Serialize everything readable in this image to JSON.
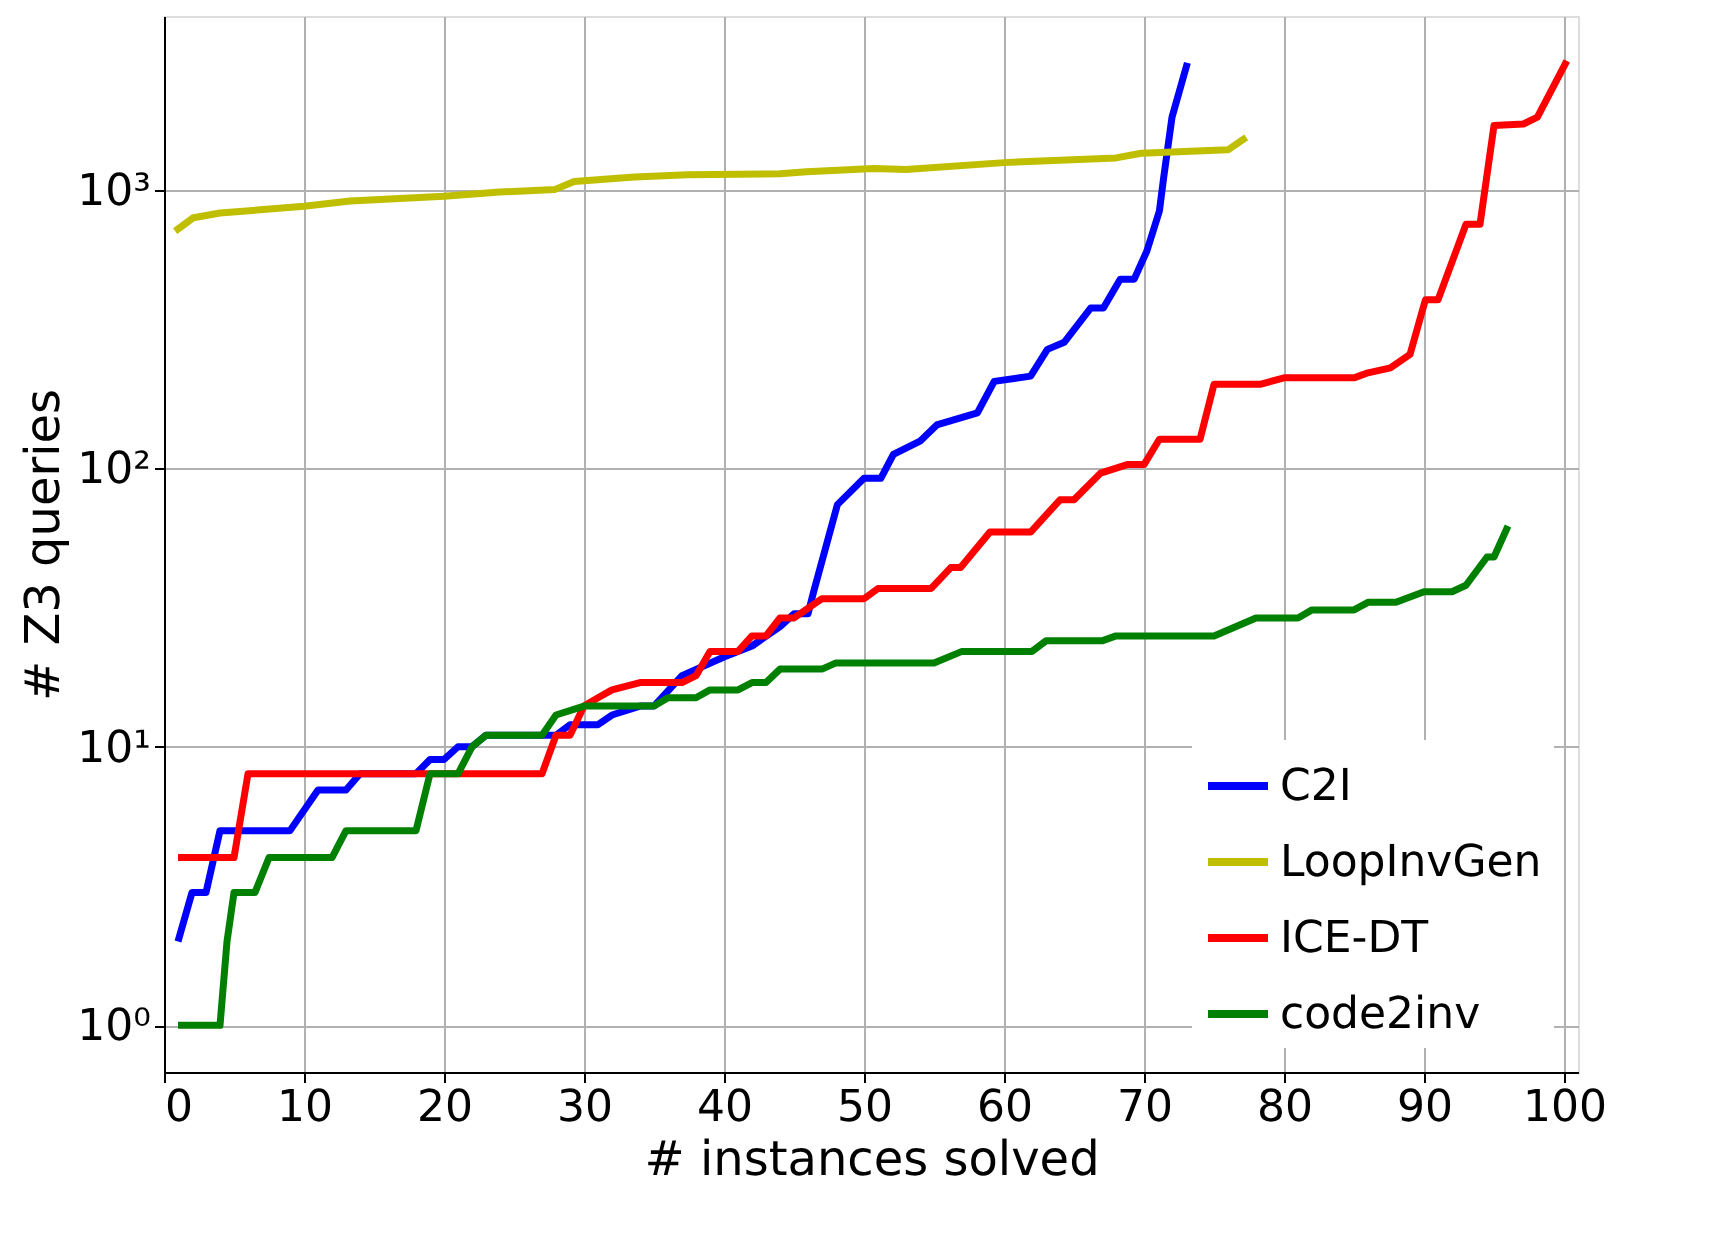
{
  "chart_data": {
    "type": "line",
    "xlabel": "# instances solved",
    "ylabel": "# Z3 queries",
    "log": "y",
    "grid": true,
    "legend": "bottom right",
    "marker": "none",
    "line_style": "solid",
    "xlim": [
      0,
      101
    ],
    "xticks": [
      0,
      10,
      20,
      30,
      40,
      50,
      60,
      70,
      80,
      90,
      100
    ],
    "ylim": [
      0.68,
      4200
    ],
    "yticks": [
      {
        "value": 1,
        "label": "10⁰"
      },
      {
        "value": 10,
        "label": "10¹"
      },
      {
        "value": 100,
        "label": "10²"
      },
      {
        "value": 1000,
        "label": "10³"
      }
    ],
    "series": [
      {
        "name": "C2I",
        "color": "#0000ff",
        "x": [
          1,
          2,
          3,
          4,
          9,
          11,
          13,
          14,
          18,
          19,
          20,
          21,
          22,
          23,
          28,
          29,
          31,
          32,
          34,
          35,
          37,
          40,
          42,
          44,
          45,
          46,
          46.4,
          48.1,
          50,
          51.2,
          52.1,
          54,
          55.2,
          58.1,
          59.3,
          61.9,
          63.1,
          64.3,
          66.2,
          67.1,
          68.3,
          69.3,
          70.2,
          71.1,
          71.4,
          72,
          73.1
        ],
        "values": [
          2,
          3,
          3,
          5,
          5,
          7,
          7,
          8,
          8,
          9,
          9,
          10,
          10,
          11,
          11,
          12,
          12,
          13,
          14,
          14,
          18,
          21,
          23,
          27,
          30,
          30,
          36,
          74,
          92,
          92,
          112,
          125,
          143,
          158,
          205,
          214,
          267,
          283,
          376,
          376,
          477,
          477,
          601,
          838,
          1100,
          1820,
          2850
        ]
      },
      {
        "name": "LoopInvGen",
        "color": "#bfbf00",
        "x": [
          0.8,
          2.1,
          4,
          10,
          13.3,
          20,
          24,
          27.9,
          29.3,
          33.6,
          37.4,
          44,
          45.9,
          50.7,
          53,
          60,
          68,
          69.8,
          76,
          77.3
        ],
        "values": [
          710,
          793,
          824,
          871,
          910,
          946,
          980,
          1000,
          1070,
          1110,
          1130,
          1140,
          1160,
          1190,
          1180,
          1250,
          1300,
          1350,
          1390,
          1540
        ]
      },
      {
        "name": "ICE-DT",
        "color": "#ff0000",
        "x": [
          1,
          5,
          6,
          27,
          28,
          29,
          30,
          31,
          32,
          34,
          37,
          38,
          39,
          41,
          42,
          43,
          44,
          45,
          47,
          50,
          51,
          54.8,
          56.2,
          56.9,
          59,
          61.9,
          64,
          65,
          66.9,
          68.8,
          70,
          71.1,
          74,
          75,
          78.3,
          80,
          85,
          86,
          87.6,
          89,
          90.1,
          91,
          93,
          94,
          95,
          97.1,
          98.1,
          100.2
        ],
        "values": [
          4,
          4,
          8,
          8,
          11,
          11,
          14,
          15,
          16,
          17,
          17,
          18,
          22,
          22,
          25,
          25,
          29,
          29,
          34,
          34,
          37,
          37,
          44,
          44,
          59,
          59,
          77,
          77,
          96,
          103,
          103,
          127,
          127,
          200,
          200,
          211,
          211,
          220,
          229,
          256,
          402,
          402,
          751,
          751,
          1700,
          1720,
          1820,
          2900
        ]
      },
      {
        "name": "code2inv",
        "color": "#008000",
        "x": [
          1,
          4,
          4.5,
          5,
          6.5,
          7.5,
          12,
          13,
          18,
          19,
          21,
          22,
          23,
          27,
          28,
          30,
          35,
          36,
          38,
          39,
          41,
          42,
          43,
          44,
          47,
          48,
          55,
          57,
          62,
          63,
          67,
          68,
          75,
          78,
          81,
          82,
          85,
          86,
          88,
          90,
          92,
          93,
          94.5,
          95,
          96
        ],
        "values": [
          1,
          1,
          2,
          3,
          3,
          4,
          4,
          5,
          5,
          8,
          8,
          10,
          11,
          11,
          13,
          14,
          14,
          15,
          15,
          16,
          16,
          17,
          17,
          19,
          19,
          20,
          20,
          22,
          22,
          24,
          24,
          25,
          25,
          29,
          29,
          31,
          31,
          33,
          33,
          36,
          36,
          38,
          48,
          48,
          62
        ]
      }
    ]
  }
}
